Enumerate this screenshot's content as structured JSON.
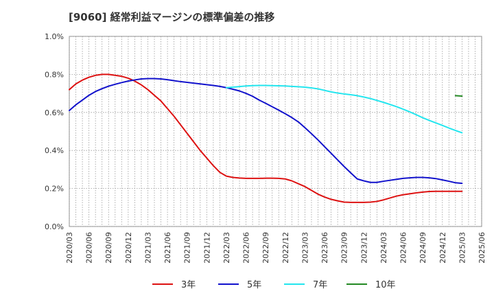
{
  "chart_data": {
    "type": "line",
    "title": "[9060]  経常利益マージンの標準偏差の推移",
    "xlabel": "",
    "ylabel": "",
    "x_ticks": [
      "2020/03",
      "2020/06",
      "2020/09",
      "2020/12",
      "2021/03",
      "2021/06",
      "2021/09",
      "2021/12",
      "2022/03",
      "2022/06",
      "2022/09",
      "2022/12",
      "2023/03",
      "2023/06",
      "2023/09",
      "2023/12",
      "2024/03",
      "2024/06",
      "2024/09",
      "2024/12",
      "2025/03",
      "2025/06"
    ],
    "y_ticks": [
      "0.0%",
      "0.2%",
      "0.4%",
      "0.6%",
      "0.8%",
      "1.0%"
    ],
    "ylim": [
      0,
      1.0
    ],
    "grid": true,
    "legend_position": "bottom",
    "series": [
      {
        "name": "3年",
        "color": "#dd1111",
        "values": [
          [
            "2020/03",
            0.72
          ],
          [
            "2020/04",
            0.75
          ],
          [
            "2020/05",
            0.77
          ],
          [
            "2020/06",
            0.785
          ],
          [
            "2020/07",
            0.795
          ],
          [
            "2020/08",
            0.8
          ],
          [
            "2020/09",
            0.8
          ],
          [
            "2020/10",
            0.795
          ],
          [
            "2020/11",
            0.79
          ],
          [
            "2020/12",
            0.78
          ],
          [
            "2021/01",
            0.765
          ],
          [
            "2021/02",
            0.745
          ],
          [
            "2021/03",
            0.72
          ],
          [
            "2021/04",
            0.69
          ],
          [
            "2021/05",
            0.66
          ],
          [
            "2021/06",
            0.62
          ],
          [
            "2021/07",
            0.58
          ],
          [
            "2021/08",
            0.535
          ],
          [
            "2021/09",
            0.49
          ],
          [
            "2021/10",
            0.445
          ],
          [
            "2021/11",
            0.4
          ],
          [
            "2021/12",
            0.36
          ],
          [
            "2022/01",
            0.32
          ],
          [
            "2022/02",
            0.285
          ],
          [
            "2022/03",
            0.265
          ],
          [
            "2022/04",
            0.258
          ],
          [
            "2022/05",
            0.255
          ],
          [
            "2022/06",
            0.253
          ],
          [
            "2022/07",
            0.253
          ],
          [
            "2022/08",
            0.253
          ],
          [
            "2022/09",
            0.254
          ],
          [
            "2022/10",
            0.254
          ],
          [
            "2022/11",
            0.253
          ],
          [
            "2022/12",
            0.25
          ],
          [
            "2023/01",
            0.24
          ],
          [
            "2023/02",
            0.225
          ],
          [
            "2023/03",
            0.21
          ],
          [
            "2023/04",
            0.19
          ],
          [
            "2023/05",
            0.17
          ],
          [
            "2023/06",
            0.155
          ],
          [
            "2023/07",
            0.143
          ],
          [
            "2023/08",
            0.135
          ],
          [
            "2023/09",
            0.128
          ],
          [
            "2023/10",
            0.127
          ],
          [
            "2023/11",
            0.127
          ],
          [
            "2023/12",
            0.127
          ],
          [
            "2024/01",
            0.128
          ],
          [
            "2024/02",
            0.132
          ],
          [
            "2024/03",
            0.14
          ],
          [
            "2024/04",
            0.15
          ],
          [
            "2024/05",
            0.16
          ],
          [
            "2024/06",
            0.167
          ],
          [
            "2024/07",
            0.172
          ],
          [
            "2024/08",
            0.177
          ],
          [
            "2024/09",
            0.181
          ],
          [
            "2024/10",
            0.184
          ],
          [
            "2024/11",
            0.185
          ],
          [
            "2024/12",
            0.185
          ],
          [
            "2025/01",
            0.185
          ],
          [
            "2025/02",
            0.185
          ],
          [
            "2025/03",
            0.185
          ]
        ]
      },
      {
        "name": "5年",
        "color": "#1111cc",
        "values": [
          [
            "2020/03",
            0.61
          ],
          [
            "2020/04",
            0.64
          ],
          [
            "2020/05",
            0.665
          ],
          [
            "2020/06",
            0.69
          ],
          [
            "2020/07",
            0.71
          ],
          [
            "2020/08",
            0.725
          ],
          [
            "2020/09",
            0.738
          ],
          [
            "2020/10",
            0.748
          ],
          [
            "2020/11",
            0.757
          ],
          [
            "2020/12",
            0.765
          ],
          [
            "2021/01",
            0.771
          ],
          [
            "2021/02",
            0.776
          ],
          [
            "2021/03",
            0.778
          ],
          [
            "2021/04",
            0.778
          ],
          [
            "2021/05",
            0.776
          ],
          [
            "2021/06",
            0.772
          ],
          [
            "2021/07",
            0.767
          ],
          [
            "2021/08",
            0.762
          ],
          [
            "2021/09",
            0.758
          ],
          [
            "2021/10",
            0.754
          ],
          [
            "2021/11",
            0.75
          ],
          [
            "2021/12",
            0.746
          ],
          [
            "2022/01",
            0.742
          ],
          [
            "2022/02",
            0.737
          ],
          [
            "2022/03",
            0.73
          ],
          [
            "2022/04",
            0.722
          ],
          [
            "2022/05",
            0.713
          ],
          [
            "2022/06",
            0.7
          ],
          [
            "2022/07",
            0.685
          ],
          [
            "2022/08",
            0.665
          ],
          [
            "2022/09",
            0.648
          ],
          [
            "2022/10",
            0.63
          ],
          [
            "2022/11",
            0.612
          ],
          [
            "2022/12",
            0.593
          ],
          [
            "2023/01",
            0.573
          ],
          [
            "2023/02",
            0.55
          ],
          [
            "2023/03",
            0.52
          ],
          [
            "2023/04",
            0.488
          ],
          [
            "2023/05",
            0.455
          ],
          [
            "2023/06",
            0.42
          ],
          [
            "2023/07",
            0.385
          ],
          [
            "2023/08",
            0.35
          ],
          [
            "2023/09",
            0.315
          ],
          [
            "2023/10",
            0.282
          ],
          [
            "2023/11",
            0.25
          ],
          [
            "2023/12",
            0.24
          ],
          [
            "2024/01",
            0.232
          ],
          [
            "2024/02",
            0.232
          ],
          [
            "2024/03",
            0.238
          ],
          [
            "2024/04",
            0.243
          ],
          [
            "2024/05",
            0.248
          ],
          [
            "2024/06",
            0.253
          ],
          [
            "2024/07",
            0.256
          ],
          [
            "2024/08",
            0.258
          ],
          [
            "2024/09",
            0.258
          ],
          [
            "2024/10",
            0.256
          ],
          [
            "2024/11",
            0.252
          ],
          [
            "2024/12",
            0.245
          ],
          [
            "2025/01",
            0.238
          ],
          [
            "2025/02",
            0.23
          ],
          [
            "2025/03",
            0.227
          ]
        ]
      },
      {
        "name": "7年",
        "color": "#22e5ee",
        "values": [
          [
            "2022/03",
            0.73
          ],
          [
            "2022/04",
            0.733
          ],
          [
            "2022/05",
            0.736
          ],
          [
            "2022/06",
            0.739
          ],
          [
            "2022/07",
            0.741
          ],
          [
            "2022/08",
            0.742
          ],
          [
            "2022/09",
            0.742
          ],
          [
            "2022/10",
            0.741
          ],
          [
            "2022/11",
            0.74
          ],
          [
            "2022/12",
            0.739
          ],
          [
            "2023/01",
            0.737
          ],
          [
            "2023/02",
            0.735
          ],
          [
            "2023/03",
            0.733
          ],
          [
            "2023/04",
            0.729
          ],
          [
            "2023/05",
            0.724
          ],
          [
            "2023/06",
            0.716
          ],
          [
            "2023/07",
            0.708
          ],
          [
            "2023/08",
            0.702
          ],
          [
            "2023/09",
            0.697
          ],
          [
            "2023/10",
            0.693
          ],
          [
            "2023/11",
            0.688
          ],
          [
            "2023/12",
            0.681
          ],
          [
            "2024/01",
            0.673
          ],
          [
            "2024/02",
            0.663
          ],
          [
            "2024/03",
            0.653
          ],
          [
            "2024/04",
            0.642
          ],
          [
            "2024/05",
            0.63
          ],
          [
            "2024/06",
            0.617
          ],
          [
            "2024/07",
            0.603
          ],
          [
            "2024/08",
            0.588
          ],
          [
            "2024/09",
            0.572
          ],
          [
            "2024/10",
            0.558
          ],
          [
            "2024/11",
            0.545
          ],
          [
            "2024/12",
            0.532
          ],
          [
            "2025/01",
            0.518
          ],
          [
            "2025/02",
            0.505
          ],
          [
            "2025/03",
            0.493
          ]
        ]
      },
      {
        "name": "10年",
        "color": "#228822",
        "values": [
          [
            "2025/02",
            0.688
          ],
          [
            "2025/03",
            0.686
          ]
        ]
      }
    ]
  }
}
